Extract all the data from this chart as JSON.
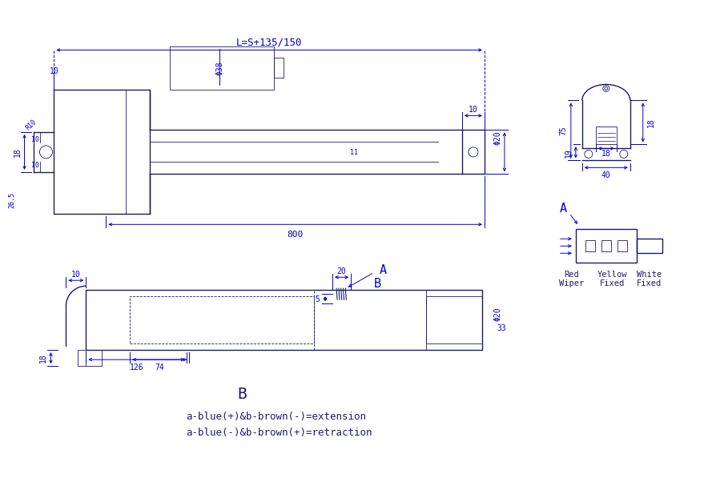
{
  "bg_color": "#ffffff",
  "line_color": "#1a1a6e",
  "dim_color": "#0000cd",
  "fig_width": 8.58,
  "fig_height": 5.83,
  "text_bottom_1": "a-blue(+)&b-brown(-)=extension",
  "text_bottom_2": "a-blue(-)&b-brown(+)=retraction",
  "label_B": "B",
  "dim_L": "L=S+135/150",
  "dim_800": "800",
  "dim_phi38": "Φ38",
  "dim_phi20_top": "Φ20",
  "dim_phi20_bot": "Φ20",
  "dim_10_tl": "10",
  "dim_10_tr": "10",
  "dim_18": "18",
  "dim_10_left": "10",
  "dim_R10": "R10",
  "dim_26_5": "26.5",
  "dim_11": "11",
  "dim_126": "126",
  "dim_74": "74",
  "dim_20": "20",
  "dim_5": "5",
  "dim_18_left": "18",
  "dim_33": "33",
  "dim_75": "75",
  "dim_18_bracket": "18",
  "dim_19": "19",
  "dim_40": "40",
  "dim_18_right": "18",
  "red_wiper": "Red\nWiper",
  "yellow_fixed": "Yellow\nFixed",
  "white_fixed": "White\nFixed"
}
